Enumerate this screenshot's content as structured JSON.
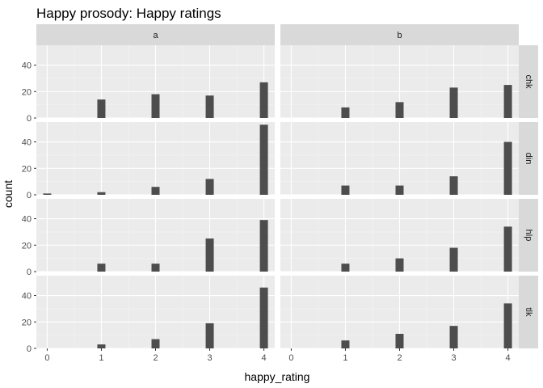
{
  "chart_data": {
    "type": "bar",
    "title": "Happy prosody: Happy ratings",
    "xlabel": "happy_rating",
    "ylabel": "count",
    "x_ticks": [
      0,
      1,
      2,
      3,
      4
    ],
    "y_ticks": [
      0,
      20,
      40
    ],
    "xlim": [
      -0.2,
      4.2
    ],
    "ylim": [
      0,
      55
    ],
    "grid": true,
    "facet_cols": [
      "a",
      "b"
    ],
    "facet_rows": [
      "chk",
      "din",
      "hlp",
      "tlk"
    ],
    "x": [
      0,
      1,
      2,
      3,
      4
    ],
    "panels": [
      {
        "row": "chk",
        "col": "a",
        "values": [
          0,
          14,
          18,
          17,
          27
        ]
      },
      {
        "row": "chk",
        "col": "b",
        "values": [
          0,
          8,
          12,
          23,
          25
        ]
      },
      {
        "row": "din",
        "col": "a",
        "values": [
          1,
          2,
          6,
          12,
          53
        ]
      },
      {
        "row": "din",
        "col": "b",
        "values": [
          0,
          7,
          7,
          14,
          40
        ]
      },
      {
        "row": "hlp",
        "col": "a",
        "values": [
          0,
          6,
          6,
          25,
          39
        ]
      },
      {
        "row": "hlp",
        "col": "b",
        "values": [
          0,
          6,
          10,
          18,
          34
        ]
      },
      {
        "row": "tlk",
        "col": "a",
        "values": [
          0,
          3,
          7,
          19,
          46
        ]
      },
      {
        "row": "tlk",
        "col": "b",
        "values": [
          0,
          6,
          11,
          17,
          34
        ]
      }
    ],
    "colors": {
      "bar": "#4d4d4d",
      "panel_bg": "#ebebeb",
      "grid_major": "#ffffff",
      "grid_minor": "#f5f5f5",
      "strip_bg": "#d9d9d9",
      "tick": "#333333"
    }
  }
}
